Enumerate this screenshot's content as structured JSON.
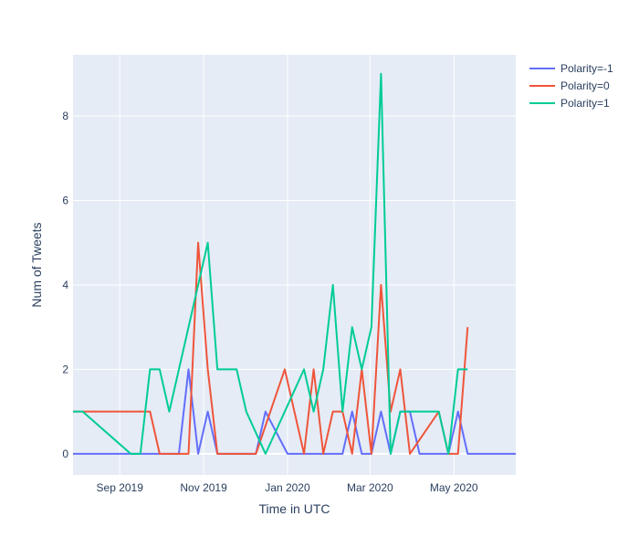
{
  "chart_data": {
    "type": "line",
    "title": "",
    "xlabel": "Time in UTC",
    "ylabel": "Num of Tweets",
    "x_type": "date",
    "xlim": [
      "2019-07-29",
      "2020-06-15"
    ],
    "ylim": [
      -0.5,
      9.45
    ],
    "x_ticks": [
      {
        "date": "2019-09-01",
        "label": "Sep 2019"
      },
      {
        "date": "2019-11-01",
        "label": "Nov 2019"
      },
      {
        "date": "2020-01-01",
        "label": "Jan 2020"
      },
      {
        "date": "2020-03-01",
        "label": "Mar 2020"
      },
      {
        "date": "2020-05-01",
        "label": "May 2020"
      }
    ],
    "y_ticks": [
      0,
      2,
      4,
      6,
      8
    ],
    "grid": true,
    "legend_position": "top-right",
    "plot_background": "#e5ecf6",
    "series": [
      {
        "name": "Polarity=-1",
        "color": "#636efa",
        "points": [
          [
            "2019-07-29",
            0
          ],
          [
            "2019-10-07",
            0
          ],
          [
            "2019-10-14",
            0
          ],
          [
            "2019-10-21",
            2
          ],
          [
            "2019-10-28",
            0
          ],
          [
            "2019-11-04",
            1
          ],
          [
            "2019-11-11",
            0
          ],
          [
            "2019-12-02",
            0
          ],
          [
            "2019-12-09",
            0
          ],
          [
            "2019-12-16",
            1
          ],
          [
            "2020-01-01",
            0
          ],
          [
            "2020-02-10",
            0
          ],
          [
            "2020-02-17",
            1
          ],
          [
            "2020-02-24",
            0
          ],
          [
            "2020-03-02",
            0
          ],
          [
            "2020-03-09",
            1
          ],
          [
            "2020-03-16",
            0
          ],
          [
            "2020-03-23",
            1
          ],
          [
            "2020-03-30",
            1
          ],
          [
            "2020-04-06",
            0
          ],
          [
            "2020-04-27",
            0
          ],
          [
            "2020-05-04",
            1
          ],
          [
            "2020-05-11",
            0
          ],
          [
            "2020-06-15",
            0
          ]
        ]
      },
      {
        "name": "Polarity=0",
        "color": "#ef553b",
        "points": [
          [
            "2019-07-29",
            1
          ],
          [
            "2019-09-16",
            1
          ],
          [
            "2019-09-23",
            1
          ],
          [
            "2019-09-30",
            0
          ],
          [
            "2019-10-21",
            0
          ],
          [
            "2019-10-28",
            5
          ],
          [
            "2019-11-04",
            2
          ],
          [
            "2019-11-11",
            0
          ],
          [
            "2019-12-09",
            0
          ],
          [
            "2019-12-30",
            2
          ],
          [
            "2020-01-13",
            0
          ],
          [
            "2020-01-20",
            2
          ],
          [
            "2020-01-27",
            0
          ],
          [
            "2020-02-03",
            1
          ],
          [
            "2020-02-10",
            1
          ],
          [
            "2020-02-17",
            0
          ],
          [
            "2020-02-24",
            2
          ],
          [
            "2020-03-02",
            0
          ],
          [
            "2020-03-09",
            4
          ],
          [
            "2020-03-16",
            1
          ],
          [
            "2020-03-23",
            2
          ],
          [
            "2020-03-30",
            0
          ],
          [
            "2020-04-20",
            1
          ],
          [
            "2020-04-27",
            0
          ],
          [
            "2020-05-04",
            0
          ],
          [
            "2020-05-11",
            3
          ]
        ]
      },
      {
        "name": "Polarity=1",
        "color": "#00cc96",
        "points": [
          [
            "2019-07-29",
            1
          ],
          [
            "2019-08-05",
            1
          ],
          [
            "2019-09-09",
            0
          ],
          [
            "2019-09-16",
            0
          ],
          [
            "2019-09-23",
            2
          ],
          [
            "2019-09-30",
            2
          ],
          [
            "2019-10-07",
            1
          ],
          [
            "2019-11-04",
            5
          ],
          [
            "2019-11-11",
            2
          ],
          [
            "2019-11-25",
            2
          ],
          [
            "2019-12-02",
            1
          ],
          [
            "2019-12-16",
            0
          ],
          [
            "2020-01-13",
            2
          ],
          [
            "2020-01-20",
            1
          ],
          [
            "2020-01-27",
            2
          ],
          [
            "2020-02-03",
            4
          ],
          [
            "2020-02-10",
            1
          ],
          [
            "2020-02-17",
            3
          ],
          [
            "2020-02-24",
            2
          ],
          [
            "2020-03-02",
            3
          ],
          [
            "2020-03-09",
            9
          ],
          [
            "2020-03-16",
            0
          ],
          [
            "2020-03-23",
            1
          ],
          [
            "2020-04-20",
            1
          ],
          [
            "2020-04-27",
            0
          ],
          [
            "2020-05-04",
            2
          ],
          [
            "2020-05-11",
            2
          ]
        ]
      }
    ]
  }
}
